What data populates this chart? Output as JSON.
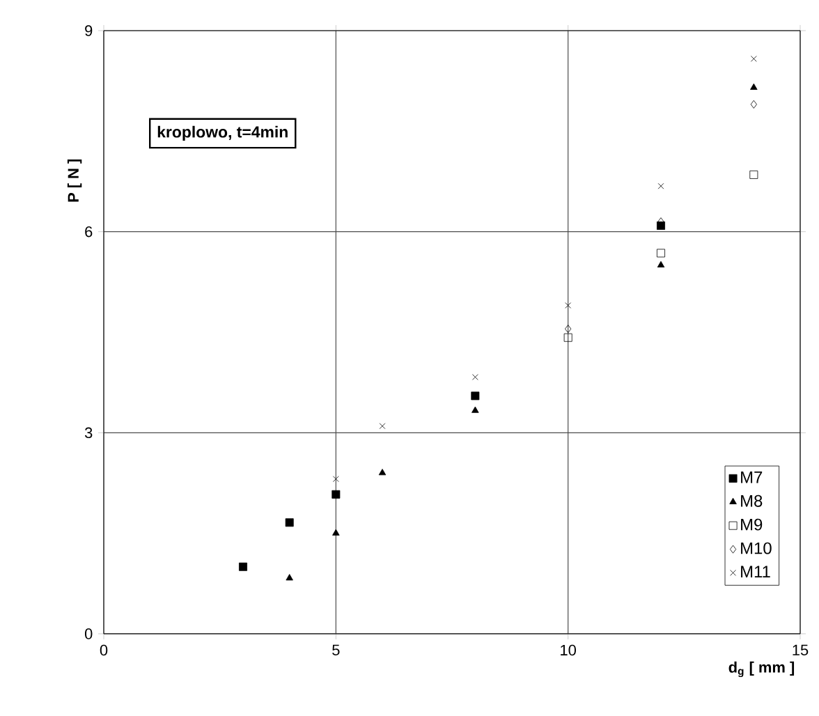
{
  "chart_data": {
    "type": "scatter",
    "xlabel": "d$_{g}$ [ mm ]",
    "ylabel": "P [ N ]",
    "annotations": [
      "kroplowo, t=4min"
    ],
    "xlim": [
      0,
      15
    ],
    "xticks": [
      0,
      5,
      10,
      15
    ],
    "ylim": [
      0,
      9
    ],
    "yticks": [
      0,
      3,
      6,
      9
    ],
    "grid": true,
    "legend": "right",
    "series": [
      {
        "name": "M7",
        "color": "#000000",
        "marker": "square*",
        "x": [
          3,
          4,
          5,
          8,
          12
        ],
        "values": [
          1.0,
          1.66,
          2.08,
          3.55,
          6.09
        ]
      },
      {
        "name": "M8",
        "color": "#000000",
        "marker": "triangle*",
        "x": [
          4,
          5,
          6,
          8,
          12,
          14
        ],
        "values": [
          0.83,
          1.5,
          2.4,
          3.33,
          5.5,
          8.15
        ]
      },
      {
        "name": "M9",
        "color": "#000000",
        "marker": "square",
        "x": [
          10,
          12,
          14
        ],
        "values": [
          4.42,
          5.68,
          6.85
        ]
      },
      {
        "name": "M10",
        "color": "#000000",
        "marker": "diamond",
        "x": [
          10,
          12,
          14
        ],
        "values": [
          4.55,
          6.15,
          7.9
        ]
      },
      {
        "name": "M11",
        "color": "#000000",
        "marker": "x",
        "x": [
          5,
          6,
          8,
          10,
          12,
          14
        ],
        "values": [
          2.31,
          3.1,
          3.83,
          4.9,
          6.68,
          8.58
        ]
      }
    ]
  }
}
